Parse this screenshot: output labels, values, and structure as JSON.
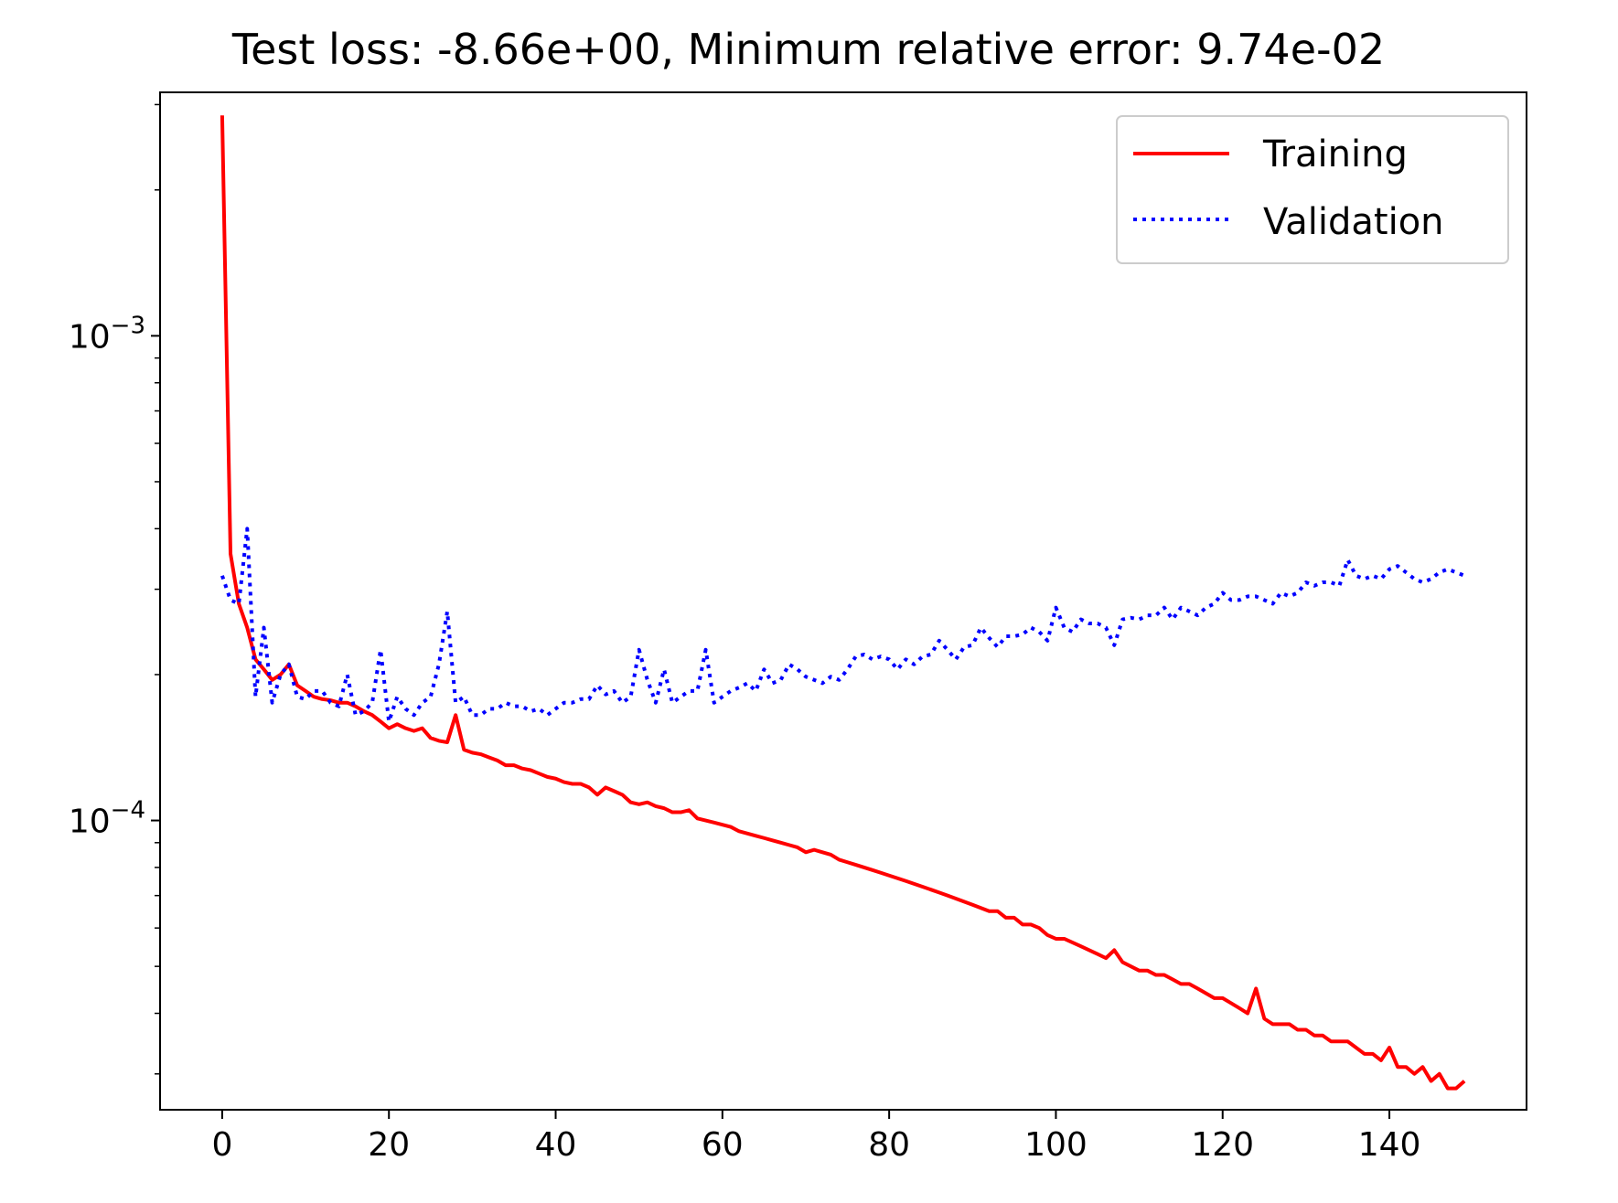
{
  "chart_data": {
    "type": "line",
    "title": "Test loss: -8.66e+00, Minimum relative error: 9.74e-02",
    "xlabel": "",
    "ylabel": "",
    "yscale": "log",
    "xlim": [
      -7.45,
      156.45
    ],
    "ylim": [
      2.53e-05,
      0.00318
    ],
    "x_ticks": [
      {
        "value": 0,
        "label": "0"
      },
      {
        "value": 20,
        "label": "20"
      },
      {
        "value": 40,
        "label": "40"
      },
      {
        "value": 60,
        "label": "60"
      },
      {
        "value": 80,
        "label": "80"
      },
      {
        "value": 100,
        "label": "100"
      },
      {
        "value": 120,
        "label": "120"
      },
      {
        "value": 140,
        "label": "140"
      }
    ],
    "y_major_ticks": [
      {
        "value": 0.001,
        "mantissa": "10",
        "exponent": "−3"
      },
      {
        "value": 0.0001,
        "mantissa": "10",
        "exponent": "−4"
      }
    ],
    "y_minor_ticks": [
      3e-05,
      4e-05,
      5e-05,
      6e-05,
      7e-05,
      8e-05,
      9e-05,
      0.0002,
      0.0003,
      0.0004,
      0.0005,
      0.0006,
      0.0007,
      0.0008,
      0.0009,
      0.002,
      0.003
    ],
    "grid": false,
    "legend": {
      "position": "upper right",
      "entries": [
        {
          "label": "Training",
          "color": "#ff0000",
          "style": "solid"
        },
        {
          "label": "Validation",
          "color": "#0000ff",
          "style": "dotted"
        }
      ]
    },
    "series": [
      {
        "name": "Training",
        "color": "#ff0000",
        "style": "solid",
        "x": [
          0,
          1,
          2,
          3,
          4,
          5,
          6,
          7,
          8,
          9,
          10,
          11,
          12,
          13,
          14,
          15,
          16,
          17,
          18,
          19,
          20,
          21,
          22,
          23,
          24,
          25,
          26,
          27,
          28,
          29,
          30,
          31,
          32,
          33,
          34,
          35,
          36,
          37,
          38,
          39,
          40,
          41,
          42,
          43,
          44,
          45,
          46,
          47,
          48,
          49,
          50,
          51,
          52,
          53,
          54,
          55,
          56,
          57,
          58,
          59,
          60,
          61,
          62,
          63,
          64,
          65,
          66,
          67,
          68,
          69,
          70,
          71,
          72,
          73,
          74,
          75,
          76,
          77,
          78,
          79,
          80,
          81,
          82,
          83,
          84,
          85,
          86,
          87,
          88,
          89,
          90,
          91,
          92,
          93,
          94,
          95,
          96,
          97,
          98,
          99,
          100,
          101,
          102,
          103,
          104,
          105,
          106,
          107,
          108,
          109,
          110,
          111,
          112,
          113,
          114,
          115,
          116,
          117,
          118,
          119,
          120,
          121,
          122,
          123,
          124,
          125,
          126,
          127,
          128,
          129,
          130,
          131,
          132,
          133,
          134,
          135,
          136,
          137,
          138,
          139,
          140,
          141,
          142,
          143,
          144,
          145,
          146,
          147,
          148,
          149
        ],
        "values": [
          0.00285,
          0.000355,
          0.00028,
          0.00025,
          0.000215,
          0.000205,
          0.000195,
          0.0002,
          0.00021,
          0.00019,
          0.000185,
          0.00018,
          0.000178,
          0.000177,
          0.000175,
          0.000175,
          0.000172,
          0.000168,
          0.000165,
          0.00016,
          0.000155,
          0.000158,
          0.000155,
          0.000153,
          0.000155,
          0.000148,
          0.000146,
          0.000145,
          0.000165,
          0.00014,
          0.000138,
          0.000137,
          0.000135,
          0.000133,
          0.00013,
          0.00013,
          0.000128,
          0.000127,
          0.000125,
          0.000123,
          0.000122,
          0.00012,
          0.000119,
          0.000119,
          0.000117,
          0.000113,
          0.000117,
          0.000115,
          0.000113,
          0.000109,
          0.000108,
          0.000109,
          0.000107,
          0.000106,
          0.000104,
          0.000104,
          0.000105,
          0.000101,
          0.0001,
          9.9e-05,
          9.8e-05,
          9.7e-05,
          9.5e-05,
          9.4e-05,
          9.3e-05,
          9.2e-05,
          9.1e-05,
          9e-05,
          8.9e-05,
          8.8e-05,
          8.6e-05,
          8.7e-05,
          8.6e-05,
          8.5e-05,
          8.3e-05,
          8.2e-05,
          8.1e-05,
          8e-05,
          7.9e-05,
          7.8e-05,
          7.7e-05,
          7.6e-05,
          7.5e-05,
          7.4e-05,
          7.3e-05,
          7.2e-05,
          7.1e-05,
          7e-05,
          6.9e-05,
          6.8e-05,
          6.7e-05,
          6.6e-05,
          6.5e-05,
          6.5e-05,
          6.3e-05,
          6.3e-05,
          6.1e-05,
          6.1e-05,
          6e-05,
          5.8e-05,
          5.7e-05,
          5.7e-05,
          5.6e-05,
          5.5e-05,
          5.4e-05,
          5.3e-05,
          5.2e-05,
          5.4e-05,
          5.1e-05,
          5e-05,
          4.9e-05,
          4.9e-05,
          4.8e-05,
          4.8e-05,
          4.7e-05,
          4.6e-05,
          4.6e-05,
          4.5e-05,
          4.4e-05,
          4.3e-05,
          4.3e-05,
          4.2e-05,
          4.1e-05,
          4e-05,
          4.5e-05,
          3.9e-05,
          3.8e-05,
          3.8e-05,
          3.8e-05,
          3.7e-05,
          3.7e-05,
          3.6e-05,
          3.6e-05,
          3.5e-05,
          3.5e-05,
          3.5e-05,
          3.4e-05,
          3.3e-05,
          3.3e-05,
          3.2e-05,
          3.4e-05,
          3.1e-05,
          3.1e-05,
          3e-05,
          3.1e-05,
          2.9e-05,
          3e-05,
          2.8e-05,
          2.8e-05,
          2.9e-05
        ]
      },
      {
        "name": "Validation",
        "color": "#0000ff",
        "style": "dotted",
        "x": [
          0,
          1,
          2,
          3,
          4,
          5,
          6,
          7,
          8,
          9,
          10,
          11,
          12,
          13,
          14,
          15,
          16,
          17,
          18,
          19,
          20,
          21,
          22,
          23,
          24,
          25,
          26,
          27,
          28,
          29,
          30,
          31,
          32,
          33,
          34,
          35,
          36,
          37,
          38,
          39,
          40,
          41,
          42,
          43,
          44,
          45,
          46,
          47,
          48,
          49,
          50,
          51,
          52,
          53,
          54,
          55,
          56,
          57,
          58,
          59,
          60,
          61,
          62,
          63,
          64,
          65,
          66,
          67,
          68,
          69,
          70,
          71,
          72,
          73,
          74,
          75,
          76,
          77,
          78,
          79,
          80,
          81,
          82,
          83,
          84,
          85,
          86,
          87,
          88,
          89,
          90,
          91,
          92,
          93,
          94,
          95,
          96,
          97,
          98,
          99,
          100,
          101,
          102,
          103,
          104,
          105,
          106,
          107,
          108,
          109,
          110,
          111,
          112,
          113,
          114,
          115,
          116,
          117,
          118,
          119,
          120,
          121,
          122,
          123,
          124,
          125,
          126,
          127,
          128,
          129,
          130,
          131,
          132,
          133,
          134,
          135,
          136,
          137,
          138,
          139,
          140,
          141,
          142,
          143,
          144,
          145,
          146,
          147,
          148,
          149
        ],
        "values": [
          0.00032,
          0.000285,
          0.00028,
          0.0004,
          0.00018,
          0.00025,
          0.000175,
          0.0002,
          0.00021,
          0.00018,
          0.000178,
          0.000185,
          0.000185,
          0.000175,
          0.000172,
          0.0002,
          0.000165,
          0.000168,
          0.000175,
          0.000225,
          0.00016,
          0.00018,
          0.00017,
          0.000165,
          0.000175,
          0.00018,
          0.00021,
          0.00027,
          0.000175,
          0.00018,
          0.000165,
          0.000165,
          0.00017,
          0.00017,
          0.000175,
          0.000172,
          0.000172,
          0.000168,
          0.00017,
          0.000165,
          0.00017,
          0.000175,
          0.000175,
          0.000178,
          0.000178,
          0.00019,
          0.000182,
          0.000185,
          0.000175,
          0.00018,
          0.000225,
          0.000195,
          0.000175,
          0.000205,
          0.000175,
          0.00018,
          0.000185,
          0.000185,
          0.000225,
          0.000175,
          0.00018,
          0.000185,
          0.000188,
          0.000192,
          0.000185,
          0.000205,
          0.000192,
          0.000195,
          0.00021,
          0.000205,
          0.000198,
          0.000195,
          0.000192,
          0.000198,
          0.000195,
          0.000205,
          0.000218,
          0.00022,
          0.000215,
          0.000218,
          0.000215,
          0.000205,
          0.000215,
          0.00021,
          0.000218,
          0.00022,
          0.000235,
          0.000225,
          0.000215,
          0.000228,
          0.00023,
          0.00025,
          0.000238,
          0.000228,
          0.00024,
          0.00024,
          0.000242,
          0.00025,
          0.000245,
          0.000235,
          0.000275,
          0.00025,
          0.000245,
          0.00026,
          0.000255,
          0.000255,
          0.00025,
          0.00023,
          0.00026,
          0.000262,
          0.00026,
          0.000265,
          0.000265,
          0.000275,
          0.00026,
          0.000275,
          0.00027,
          0.000265,
          0.000275,
          0.00028,
          0.000295,
          0.000285,
          0.000285,
          0.00029,
          0.00029,
          0.000285,
          0.00028,
          0.000295,
          0.00029,
          0.000295,
          0.00031,
          0.000305,
          0.00031,
          0.00031,
          0.000305,
          0.000345,
          0.00032,
          0.000315,
          0.00032,
          0.000315,
          0.00033,
          0.000335,
          0.000325,
          0.000315,
          0.00031,
          0.000315,
          0.000325,
          0.00033,
          0.000325,
          0.00032
        ]
      }
    ]
  }
}
